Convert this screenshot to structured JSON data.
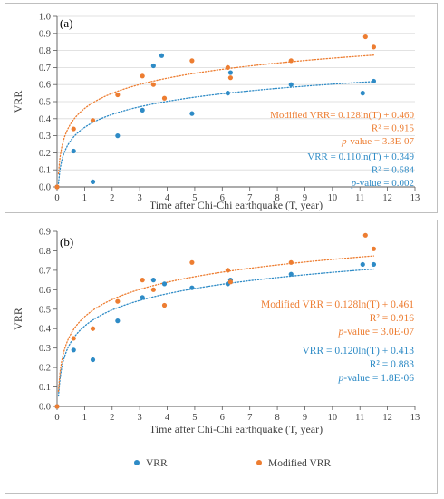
{
  "colors": {
    "vrr": "#2e8bc6",
    "modified": "#ed7d31",
    "grid": "#d9d9d9",
    "axis": "#595959",
    "text": "#404040"
  },
  "chart_data": [
    {
      "type": "scatter",
      "panel_label": "(a)",
      "xlabel": "Time after Chi-Chi earthquake (T, year)",
      "ylabel": "VRR",
      "xlim": [
        0,
        13
      ],
      "ylim": [
        0,
        1
      ],
      "xticks": [
        0,
        1,
        2,
        3,
        4,
        5,
        6,
        7,
        8,
        9,
        10,
        11,
        12,
        13
      ],
      "yticks": [
        0,
        0.1,
        0.2,
        0.3,
        0.4,
        0.5,
        0.6,
        0.7,
        0.8,
        0.9,
        1
      ],
      "ytick_labels": [
        "0.0",
        "0.1",
        "0.2",
        "0.3",
        "0.4",
        "0.5",
        "0.6",
        "0.7",
        "0.8",
        "0.9",
        "1.0"
      ],
      "grid": "horizontal",
      "series": [
        {
          "key": "vrr",
          "x": [
            0,
            0.6,
            1.3,
            2.2,
            3.1,
            3.5,
            3.8,
            4.9,
            6.2,
            6.3,
            8.5,
            11.1,
            11.5
          ],
          "y": [
            0,
            0.21,
            0.03,
            0.3,
            0.45,
            0.71,
            0.77,
            0.43,
            0.55,
            0.67,
            0.6,
            0.55,
            0.62
          ],
          "trend": {
            "a": 0.11,
            "b": 0.349
          }
        },
        {
          "key": "modified",
          "x": [
            0,
            0.6,
            1.3,
            2.2,
            3.1,
            3.5,
            3.9,
            4.9,
            6.2,
            6.3,
            8.5,
            11.2,
            11.5
          ],
          "y": [
            0,
            0.34,
            0.39,
            0.54,
            0.65,
            0.6,
            0.52,
            0.74,
            0.7,
            0.64,
            0.74,
            0.88,
            0.82
          ],
          "trend": {
            "a": 0.128,
            "b": 0.46
          }
        }
      ],
      "annotations": [
        {
          "series": "modified",
          "lines": [
            "Modified VRR= 0.128ln(T) + 0.460",
            "R² = 0.915",
            "p-value = 3.3E-07"
          ]
        },
        {
          "series": "vrr",
          "lines": [
            "VRR = 0.110ln(T) + 0.349",
            "R² = 0.584",
            "p-value = 0.002"
          ]
        }
      ]
    },
    {
      "type": "scatter",
      "panel_label": "(b)",
      "xlabel": "Time after Chi-Chi earthquake (T, year)",
      "ylabel": "VRR",
      "xlim": [
        0,
        13
      ],
      "ylim": [
        0,
        0.9
      ],
      "xticks": [
        0,
        1,
        2,
        3,
        4,
        5,
        6,
        7,
        8,
        9,
        10,
        11,
        12,
        13
      ],
      "yticks": [
        0,
        0.1,
        0.2,
        0.3,
        0.4,
        0.5,
        0.6,
        0.7,
        0.8,
        0.9
      ],
      "ytick_labels": [
        "0.0",
        "0.1",
        "0.2",
        "0.3",
        "0.4",
        "0.5",
        "0.6",
        "0.7",
        "0.8",
        "0.9"
      ],
      "grid": "none",
      "series": [
        {
          "key": "vrr",
          "x": [
            0,
            0.6,
            1.3,
            2.2,
            3.1,
            3.5,
            3.9,
            4.9,
            6.2,
            6.3,
            8.5,
            11.1,
            11.5
          ],
          "y": [
            0,
            0.29,
            0.24,
            0.44,
            0.56,
            0.65,
            0.63,
            0.61,
            0.63,
            0.65,
            0.68,
            0.73,
            0.73
          ],
          "trend": {
            "a": 0.12,
            "b": 0.413
          }
        },
        {
          "key": "modified",
          "x": [
            0,
            0.6,
            1.3,
            2.2,
            3.1,
            3.5,
            3.9,
            4.9,
            6.2,
            6.3,
            8.5,
            11.2,
            11.5
          ],
          "y": [
            0,
            0.35,
            0.4,
            0.54,
            0.65,
            0.6,
            0.52,
            0.74,
            0.7,
            0.64,
            0.74,
            0.88,
            0.81
          ],
          "trend": {
            "a": 0.128,
            "b": 0.461
          }
        }
      ],
      "annotations": [
        {
          "series": "modified",
          "lines": [
            "Modified VRR = 0.128ln(T) + 0.461",
            "R² = 0.916",
            "p-value = 3.0E-07"
          ]
        },
        {
          "series": "vrr",
          "lines": [
            "VRR = 0.120ln(T) + 0.413",
            "R² = 0.883",
            "p-value = 1.8E-06"
          ]
        }
      ],
      "legend": [
        {
          "series": "vrr",
          "label": "VRR"
        },
        {
          "series": "modified",
          "label": "Modified VRR"
        }
      ]
    }
  ]
}
